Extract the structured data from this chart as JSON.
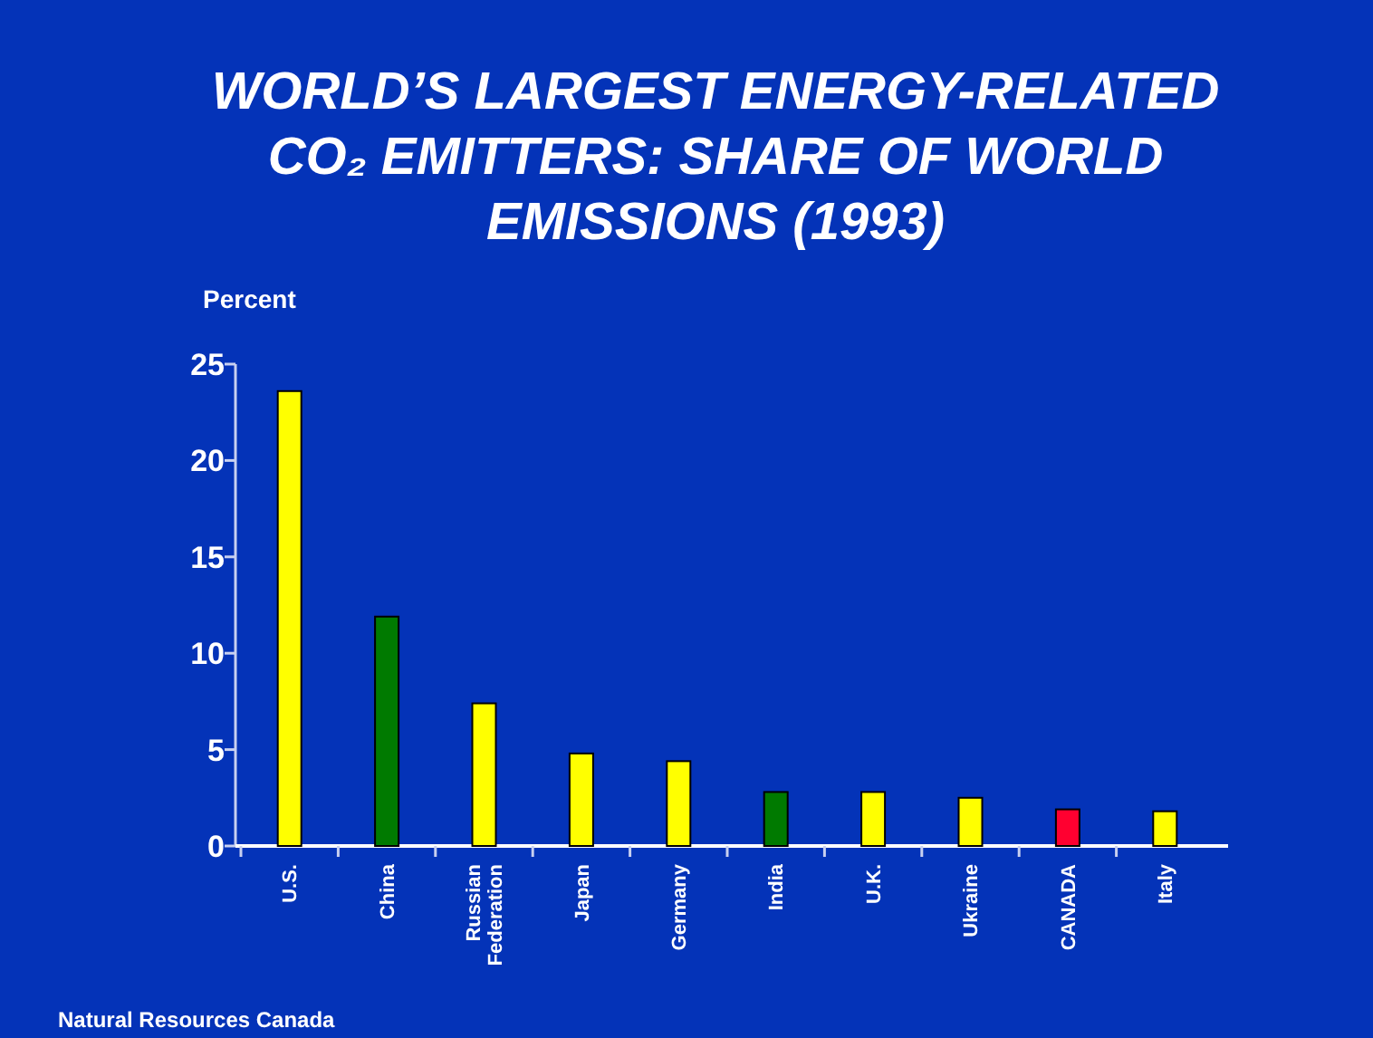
{
  "chart_data": {
    "type": "bar",
    "title": "WORLD’S LARGEST ENERGY-RELATED CO₂ EMITTERS: SHARE OF WORLD EMISSIONS (1993)",
    "ylabel": "Percent",
    "categories": [
      "U.S.",
      "China",
      "Russian Federation",
      "Japan",
      "Germany",
      "India",
      "U.K.",
      "Ukraine",
      "CANADA",
      "Italy"
    ],
    "values": [
      23.6,
      11.9,
      7.4,
      4.8,
      4.4,
      2.8,
      2.8,
      2.5,
      1.9,
      1.8
    ],
    "colors": [
      "#ffff00",
      "#007a00",
      "#ffff00",
      "#ffff00",
      "#ffff00",
      "#007a00",
      "#ffff00",
      "#ffff00",
      "#ff0030",
      "#ffff00"
    ],
    "ylim": [
      0,
      25
    ],
    "yticks": [
      0,
      5,
      10,
      15,
      20,
      25
    ],
    "annotations": [
      "Natural Resources Canada"
    ]
  }
}
